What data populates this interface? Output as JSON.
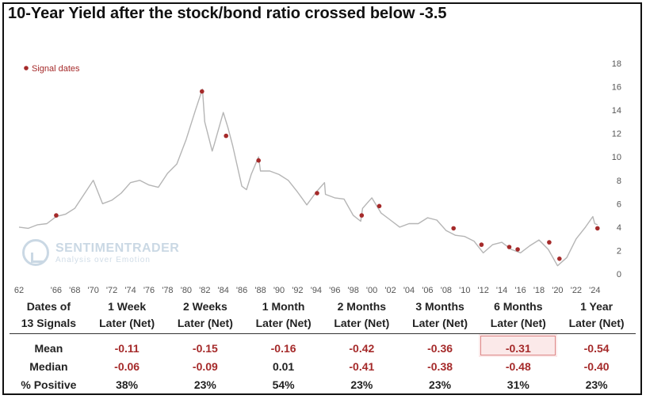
{
  "title": "10-Year Yield after the stock/bond ratio crossed below -3.5",
  "colors": {
    "line": "#b5b5b5",
    "signal": "#a52a2a",
    "negative": "#a52a2a",
    "text": "#222222"
  },
  "logo": {
    "name": "SENTIMENTRADER",
    "tagline": "Analysis over Emotion"
  },
  "chart_data": {
    "type": "line",
    "title": "10-Year Yield after the stock/bond ratio crossed below -3.5",
    "legend": {
      "label": "Signal dates",
      "position": "top-left"
    },
    "y_axis": {
      "position": "right",
      "ylim": [
        0,
        18
      ],
      "ticks": [
        0,
        2,
        4,
        6,
        8,
        10,
        12,
        14,
        16,
        18
      ]
    },
    "x_axis": {
      "xlim": [
        1962,
        2025
      ],
      "tick_years": [
        1962,
        1966,
        1968,
        1970,
        1972,
        1974,
        1976,
        1978,
        1980,
        1982,
        1984,
        1986,
        1988,
        1990,
        1992,
        1994,
        1996,
        1998,
        2000,
        2002,
        2004,
        2006,
        2008,
        2010,
        2012,
        2014,
        2016,
        2018,
        2020,
        2022,
        2024
      ],
      "tick_labels": [
        "62",
        "'66",
        "'68",
        "'70",
        "'72",
        "'74",
        "'76",
        "'78",
        "'80",
        "'82",
        "'84",
        "'86",
        "'88",
        "'90",
        "'92",
        "'94",
        "'96",
        "'98",
        "'00",
        "'02",
        "'04",
        "'06",
        "'08",
        "'10",
        "'12",
        "'14",
        "'16",
        "'18",
        "'20",
        "'22",
        "'24"
      ]
    },
    "grid": false,
    "series": [
      {
        "values": [
          [
            1962,
            4.0
          ],
          [
            1963,
            3.9
          ],
          [
            1964,
            4.2
          ],
          [
            1965,
            4.3
          ],
          [
            1966,
            4.9
          ],
          [
            1967,
            5.1
          ],
          [
            1968,
            5.6
          ],
          [
            1969,
            6.8
          ],
          [
            1970,
            8.0
          ],
          [
            1971,
            6.0
          ],
          [
            1972,
            6.3
          ],
          [
            1973,
            6.9
          ],
          [
            1974,
            7.8
          ],
          [
            1975,
            8.0
          ],
          [
            1976,
            7.6
          ],
          [
            1977,
            7.4
          ],
          [
            1978,
            8.6
          ],
          [
            1979,
            9.4
          ],
          [
            1980,
            11.5
          ],
          [
            1981,
            14.0
          ],
          [
            1981.75,
            15.8
          ],
          [
            1982,
            13.0
          ],
          [
            1982.8,
            10.5
          ],
          [
            1983,
            11.0
          ],
          [
            1984,
            13.8
          ],
          [
            1984.5,
            12.5
          ],
          [
            1985,
            11.0
          ],
          [
            1986,
            7.5
          ],
          [
            1986.5,
            7.2
          ],
          [
            1987,
            8.5
          ],
          [
            1987.8,
            10.0
          ],
          [
            1988,
            8.8
          ],
          [
            1989,
            8.8
          ],
          [
            1990,
            8.5
          ],
          [
            1991,
            8.0
          ],
          [
            1992,
            7.0
          ],
          [
            1993,
            5.9
          ],
          [
            1994,
            7.0
          ],
          [
            1994.9,
            7.8
          ],
          [
            1995,
            6.8
          ],
          [
            1996,
            6.5
          ],
          [
            1997,
            6.4
          ],
          [
            1998,
            5.0
          ],
          [
            1998.8,
            4.5
          ],
          [
            1999,
            5.6
          ],
          [
            2000,
            6.5
          ],
          [
            2001,
            5.2
          ],
          [
            2002,
            4.6
          ],
          [
            2003,
            4.0
          ],
          [
            2004,
            4.3
          ],
          [
            2005,
            4.3
          ],
          [
            2006,
            4.8
          ],
          [
            2007,
            4.6
          ],
          [
            2008,
            3.7
          ],
          [
            2009,
            3.3
          ],
          [
            2010,
            3.2
          ],
          [
            2011,
            2.8
          ],
          [
            2012,
            1.8
          ],
          [
            2013,
            2.5
          ],
          [
            2014,
            2.7
          ],
          [
            2015,
            2.1
          ],
          [
            2016,
            1.8
          ],
          [
            2017,
            2.4
          ],
          [
            2018,
            2.9
          ],
          [
            2019,
            2.1
          ],
          [
            2020,
            0.7
          ],
          [
            2021,
            1.4
          ],
          [
            2022,
            3.0
          ],
          [
            2023,
            4.0
          ],
          [
            2023.8,
            4.9
          ],
          [
            2024,
            4.3
          ],
          [
            2024.3,
            4.2
          ]
        ]
      }
    ],
    "signals": [
      [
        1966.0,
        5.0
      ],
      [
        1981.7,
        15.6
      ],
      [
        1984.3,
        11.8
      ],
      [
        1987.8,
        9.7
      ],
      [
        1994.1,
        6.9
      ],
      [
        1998.9,
        5.0
      ],
      [
        2000.8,
        5.8
      ],
      [
        2008.8,
        3.9
      ],
      [
        2011.8,
        2.5
      ],
      [
        2014.8,
        2.3
      ],
      [
        2015.7,
        2.1
      ],
      [
        2019.1,
        2.7
      ],
      [
        2020.2,
        1.3
      ],
      [
        2024.3,
        3.9
      ]
    ]
  },
  "table": {
    "header_row1": [
      "Dates of",
      "1 Week",
      "2 Weeks",
      "1 Month",
      "2 Months",
      "3 Months",
      "6 Months",
      "1 Year"
    ],
    "header_row2": [
      "13 Signals",
      "Later (Net)",
      "Later (Net)",
      "Later (Net)",
      "Later (Net)",
      "Later (Net)",
      "Later (Net)",
      "Later (Net)"
    ],
    "rows": [
      {
        "label": "Mean",
        "values": [
          "-0.11",
          "-0.15",
          "-0.16",
          "-0.42",
          "-0.36",
          "-0.31",
          "-0.54"
        ]
      },
      {
        "label": "Median",
        "values": [
          "-0.06",
          "-0.09",
          "0.01",
          "-0.41",
          "-0.38",
          "-0.48",
          "-0.40"
        ]
      },
      {
        "label": "% Positive",
        "values": [
          "38%",
          "23%",
          "54%",
          "23%",
          "23%",
          "31%",
          "23%"
        ]
      }
    ]
  }
}
